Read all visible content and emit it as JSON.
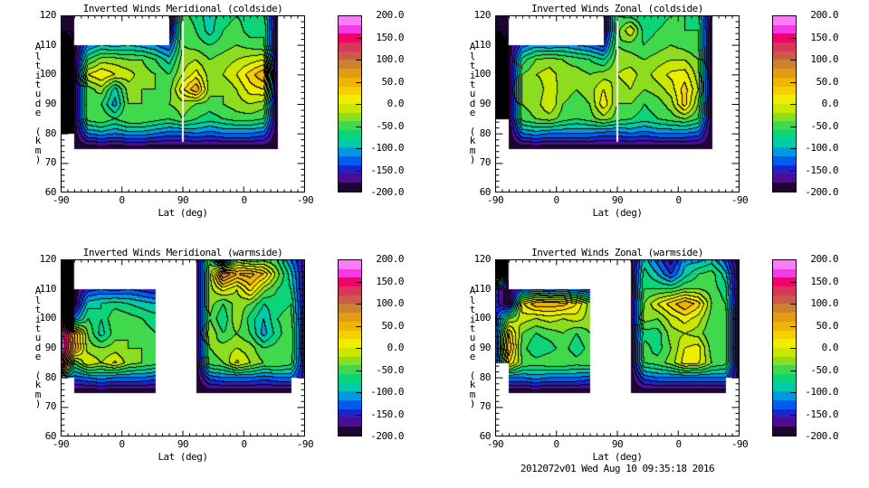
{
  "page": {
    "background": "#ffffff"
  },
  "footer": {
    "text": "2012072v01 Wed Aug 10 09:35:18 2016"
  },
  "axes": {
    "xlabel": "Lat (deg)",
    "ylabel": "Altitude (km)",
    "x_tick_labels": [
      "-90",
      "0",
      "90",
      "0",
      "-90"
    ],
    "y_tick_labels": [
      "120",
      "110",
      "100",
      "90",
      "80",
      "70",
      "60"
    ],
    "y_range": [
      60,
      120
    ],
    "x_axis_note": "folded latitude -90 to 90 to -90"
  },
  "colorbar": {
    "max": 200,
    "min": -200,
    "tick_labels": [
      "200.0",
      "150.0",
      "100.0",
      "50.0",
      "0.0",
      "-50.0",
      "-100.0",
      "-150.0",
      "-200.0"
    ],
    "tick_values": [
      200,
      150,
      100,
      50,
      0,
      -50,
      -100,
      -150,
      -200
    ],
    "band_step": 20,
    "band_colors": [
      "#f87ef4",
      "#f43ae4",
      "#f00468",
      "#d83858",
      "#c85c48",
      "#cc8030",
      "#e09c14",
      "#f0b404",
      "#f4d000",
      "#f0ee00",
      "#c8e800",
      "#8cdc20",
      "#40d84c",
      "#0cd478",
      "#00cca8",
      "#0098e4",
      "#005cf0",
      "#2024c8",
      "#4c0c94",
      "#200434"
    ],
    "line_color": "#000000"
  },
  "chart_data": [
    {
      "type": "heatmap",
      "title": "Inverted Winds Meridional (coldside)",
      "seam": true,
      "alt_top": 120,
      "alt_step": 5,
      "n_cols": 19,
      "values": [
        [
          -195,
          -195,
          null,
          null,
          null,
          null,
          null,
          null,
          -195,
          -50,
          -70,
          -90,
          -70,
          -60,
          -70,
          -70,
          -195,
          null,
          null
        ],
        [
          -195,
          -195,
          null,
          null,
          null,
          null,
          null,
          null,
          -195,
          -40,
          -60,
          -90,
          -60,
          -50,
          -70,
          -60,
          -195,
          null,
          null
        ],
        [
          195,
          -195,
          -120,
          -100,
          -110,
          -100,
          -110,
          -120,
          -140,
          -40,
          -50,
          -60,
          -50,
          -40,
          -50,
          -60,
          -195,
          null,
          null
        ],
        [
          195,
          -195,
          -60,
          -30,
          -30,
          -40,
          -40,
          -60,
          -90,
          -30,
          -20,
          -40,
          -30,
          -20,
          -10,
          0,
          -195,
          null,
          null
        ],
        [
          195,
          -195,
          0,
          20,
          0,
          -10,
          -30,
          -40,
          -60,
          -20,
          10,
          -30,
          -20,
          0,
          30,
          60,
          -195,
          null,
          null
        ],
        [
          195,
          -195,
          -50,
          -30,
          -90,
          -30,
          -40,
          -40,
          -50,
          15,
          60,
          -30,
          -40,
          -20,
          10,
          20,
          -195,
          null,
          null
        ],
        [
          195,
          -195,
          -40,
          -60,
          -110,
          -40,
          -40,
          -40,
          -40,
          -30,
          -40,
          -50,
          -40,
          -30,
          -20,
          -30,
          -195,
          null,
          null
        ],
        [
          195,
          -195,
          -50,
          -40,
          -60,
          -40,
          -40,
          -50,
          -60,
          -40,
          -60,
          -70,
          -60,
          -50,
          -50,
          -60,
          -195,
          null,
          null
        ],
        [
          195,
          -195,
          -120,
          -110,
          -120,
          -110,
          -110,
          -120,
          -130,
          -130,
          -120,
          -130,
          -120,
          -120,
          -120,
          -130,
          -195,
          null,
          null
        ],
        [
          null,
          -195,
          -195,
          -195,
          -195,
          -195,
          -195,
          -195,
          -195,
          -195,
          -195,
          -195,
          -195,
          -195,
          -195,
          -195,
          -195,
          null,
          null
        ]
      ]
    },
    {
      "type": "heatmap",
      "title": "Inverted Winds Zonal (coldside)",
      "seam": true,
      "alt_top": 120,
      "alt_step": 5,
      "n_cols": 19,
      "values": [
        [
          -195,
          -195,
          null,
          null,
          null,
          null,
          null,
          null,
          -195,
          -60,
          -70,
          -80,
          -70,
          -60,
          -60,
          -70,
          -195,
          null,
          null
        ],
        [
          -195,
          -195,
          null,
          null,
          null,
          null,
          null,
          null,
          -195,
          -50,
          0,
          -70,
          -60,
          -50,
          -60,
          -60,
          -195,
          null,
          null
        ],
        [
          195,
          -195,
          -130,
          -110,
          -120,
          -110,
          -120,
          -130,
          -150,
          -40,
          -50,
          -60,
          -50,
          -40,
          -50,
          -60,
          -195,
          null,
          null
        ],
        [
          195,
          -195,
          -70,
          -40,
          -30,
          -40,
          -50,
          -60,
          -80,
          -30,
          -30,
          -40,
          -30,
          -20,
          -20,
          -40,
          -195,
          null,
          null
        ],
        [
          195,
          -195,
          -40,
          -20,
          -10,
          -30,
          -30,
          -40,
          -30,
          -20,
          -10,
          -30,
          -10,
          5,
          10,
          -30,
          -195,
          null,
          null
        ],
        [
          195,
          -195,
          -30,
          -40,
          -5,
          -30,
          -40,
          -30,
          0,
          -30,
          -20,
          -40,
          -30,
          -10,
          30,
          -20,
          -195,
          null,
          null
        ],
        [
          195,
          -195,
          -40,
          -30,
          0,
          -40,
          -50,
          -40,
          15,
          -40,
          -40,
          -60,
          -50,
          -30,
          30,
          -40,
          -195,
          null,
          null
        ],
        [
          195,
          -195,
          -50,
          -40,
          -30,
          -50,
          -60,
          -50,
          -30,
          -50,
          -60,
          -70,
          -60,
          -50,
          -40,
          -60,
          -195,
          null,
          null
        ],
        [
          null,
          -195,
          -120,
          -110,
          -120,
          -120,
          -120,
          -120,
          -130,
          -130,
          -120,
          -130,
          -120,
          -120,
          -120,
          -130,
          -195,
          null,
          null
        ],
        [
          null,
          -195,
          -195,
          -195,
          -195,
          -195,
          -195,
          -195,
          -195,
          -195,
          -195,
          -195,
          -195,
          -195,
          -195,
          -195,
          -195,
          null,
          null
        ]
      ]
    },
    {
      "type": "heatmap",
      "title": "Inverted Winds Meridional (warmside)",
      "seam": false,
      "alt_top": 120,
      "alt_step": 5,
      "n_cols": 19,
      "values": [
        [
          195,
          -195,
          null,
          null,
          null,
          null,
          null,
          -195,
          null,
          null,
          -195,
          -40,
          -180,
          -40,
          -60,
          -50,
          -60,
          -120,
          -170
        ],
        [
          195,
          -195,
          null,
          null,
          null,
          null,
          null,
          -195,
          null,
          null,
          -195,
          -30,
          105,
          60,
          70,
          40,
          -30,
          -90,
          -170
        ],
        [
          195,
          -195,
          -150,
          -140,
          -150,
          -140,
          -150,
          -160,
          null,
          null,
          -195,
          -30,
          10,
          -20,
          30,
          -30,
          -60,
          -80,
          -170
        ],
        [
          195,
          -195,
          -90,
          -80,
          -70,
          -80,
          -90,
          -100,
          null,
          null,
          -195,
          -30,
          -60,
          -30,
          -40,
          -80,
          -70,
          -60,
          -170
        ],
        [
          195,
          -120,
          -60,
          -80,
          -40,
          -50,
          -60,
          -70,
          null,
          null,
          -195,
          -40,
          -80,
          -20,
          -70,
          -100,
          -60,
          -50,
          -170
        ],
        [
          195,
          60,
          -40,
          -90,
          -50,
          -40,
          -50,
          -60,
          null,
          null,
          -195,
          -20,
          -60,
          -40,
          -60,
          -110,
          -70,
          -40,
          -170
        ],
        [
          195,
          70,
          -30,
          -40,
          -30,
          -40,
          -40,
          -50,
          null,
          null,
          -195,
          -40,
          -30,
          -20,
          -30,
          -60,
          -50,
          -40,
          -170
        ],
        [
          195,
          -60,
          0,
          -20,
          5,
          -30,
          -40,
          -50,
          null,
          null,
          -195,
          -50,
          -40,
          5,
          -20,
          -40,
          -40,
          -50,
          -170
        ],
        [
          -130,
          -130,
          -120,
          -110,
          -120,
          -120,
          -120,
          -130,
          null,
          null,
          -195,
          -130,
          -120,
          -120,
          -120,
          -130,
          -120,
          -120,
          -170
        ],
        [
          null,
          -195,
          -195,
          -195,
          -195,
          -195,
          -195,
          -195,
          null,
          null,
          -195,
          -195,
          -195,
          -195,
          -195,
          -195,
          -195,
          -195,
          null
        ]
      ]
    },
    {
      "type": "heatmap",
      "title": "Inverted Winds Zonal (warmside)",
      "seam": false,
      "alt_top": 120,
      "alt_step": 5,
      "n_cols": 19,
      "values": [
        [
          195,
          -195,
          null,
          null,
          null,
          null,
          null,
          -195,
          null,
          null,
          -195,
          -90,
          -130,
          -170,
          -110,
          -110,
          -90,
          -130,
          -195
        ],
        [
          195,
          -195,
          null,
          null,
          null,
          null,
          null,
          -195,
          null,
          null,
          -195,
          -70,
          -100,
          -140,
          -90,
          -60,
          -50,
          -90,
          -195
        ],
        [
          -150,
          -195,
          -140,
          -130,
          -140,
          -130,
          -140,
          -150,
          null,
          null,
          -195,
          -60,
          -60,
          -60,
          -40,
          -40,
          -50,
          -70,
          -195
        ],
        [
          -150,
          -195,
          15,
          55,
          55,
          50,
          20,
          -30,
          null,
          null,
          -195,
          -40,
          0,
          30,
          60,
          30,
          -40,
          -60,
          -195
        ],
        [
          -150,
          -40,
          -10,
          -20,
          -10,
          -20,
          -10,
          -30,
          null,
          null,
          -195,
          -30,
          -40,
          -10,
          10,
          -10,
          -50,
          -40,
          -195
        ],
        [
          -150,
          40,
          -40,
          -60,
          -50,
          -40,
          -60,
          -40,
          null,
          null,
          -195,
          -70,
          -70,
          -30,
          -20,
          -30,
          -60,
          -40,
          -195
        ],
        [
          -150,
          60,
          -50,
          -80,
          -70,
          -50,
          -75,
          -50,
          null,
          null,
          -195,
          -50,
          -70,
          -40,
          0,
          10,
          -50,
          -40,
          -195
        ],
        [
          -150,
          20,
          -40,
          -50,
          -40,
          -40,
          -50,
          -40,
          null,
          null,
          -195,
          -60,
          -50,
          -30,
          10,
          5,
          -40,
          -50,
          -195
        ],
        [
          null,
          -120,
          -120,
          -110,
          -120,
          -120,
          -120,
          -130,
          null,
          null,
          -195,
          -130,
          -120,
          -120,
          -120,
          -120,
          -120,
          -120,
          -195
        ],
        [
          null,
          -195,
          -195,
          -195,
          -195,
          -195,
          -195,
          -195,
          null,
          null,
          -195,
          -195,
          -195,
          -195,
          -195,
          -195,
          -195,
          -195,
          null
        ]
      ]
    }
  ]
}
